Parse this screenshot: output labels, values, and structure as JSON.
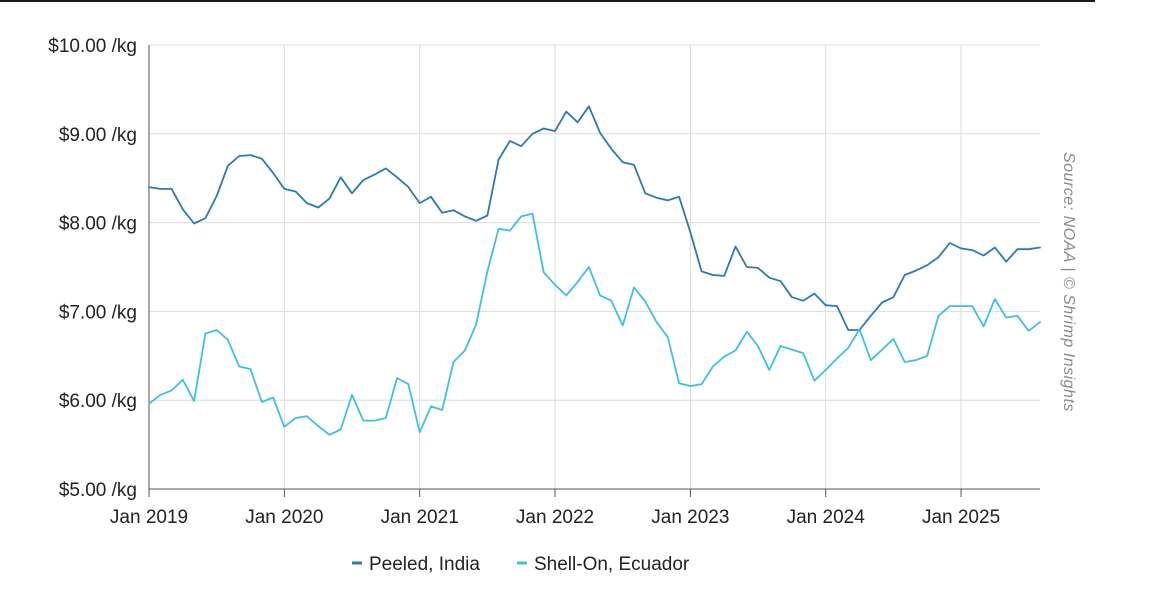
{
  "chart_data": {
    "type": "line",
    "title": "",
    "xlabel": "",
    "ylabel": "",
    "ylim": [
      5,
      10
    ],
    "xlim": [
      2019.0,
      2025.5833
    ],
    "yticks": [
      {
        "value": 5,
        "label": "$5.00 /kg"
      },
      {
        "value": 6,
        "label": "$6.00 /kg"
      },
      {
        "value": 7,
        "label": "$7.00 /kg"
      },
      {
        "value": 8,
        "label": "$8.00 /kg"
      },
      {
        "value": 9,
        "label": "$9.00 /kg"
      },
      {
        "value": 10,
        "label": "$10.00 /kg"
      }
    ],
    "xticks": [
      {
        "value": 2019,
        "label": "Jan 2019"
      },
      {
        "value": 2020,
        "label": "Jan 2020"
      },
      {
        "value": 2021,
        "label": "Jan 2021"
      },
      {
        "value": 2022,
        "label": "Jan 2022"
      },
      {
        "value": 2023,
        "label": "Jan 2023"
      },
      {
        "value": 2024,
        "label": "Jan 2024"
      },
      {
        "value": 2025,
        "label": "Jan 2025"
      }
    ],
    "grid": true,
    "legend_position": "bottom-center",
    "source": "Source: NOAA | © Shrimp Insights",
    "series": [
      {
        "name": "Peeled, India",
        "color": "#2a7ab8",
        "values": [
          8.4,
          8.38,
          8.38,
          8.15,
          7.99,
          8.05,
          8.3,
          8.64,
          8.75,
          8.76,
          8.72,
          8.56,
          8.38,
          8.35,
          8.22,
          8.17,
          8.27,
          8.51,
          8.33,
          8.48,
          8.54,
          8.61,
          8.51,
          8.4,
          8.22,
          8.29,
          8.11,
          8.14,
          8.07,
          8.02,
          8.08,
          8.71,
          8.92,
          8.86,
          9.0,
          9.06,
          9.03,
          9.25,
          9.13,
          9.31,
          9.01,
          8.83,
          8.68,
          8.65,
          8.33,
          8.28,
          8.25,
          8.29,
          7.89,
          7.45,
          7.41,
          7.4,
          7.73,
          7.5,
          7.49,
          7.38,
          7.34,
          7.16,
          7.12,
          7.2,
          7.07,
          7.06,
          6.79,
          6.79,
          6.95,
          7.1,
          7.16,
          7.41,
          7.46,
          7.52,
          7.61,
          7.77,
          7.71,
          7.69,
          7.63,
          7.72,
          7.56,
          7.7,
          7.7,
          7.72
        ]
      },
      {
        "name": "Shell-On, Ecuador",
        "color": "#3ec0e6",
        "values": [
          5.96,
          6.06,
          6.11,
          6.23,
          5.99,
          6.75,
          6.79,
          6.68,
          6.38,
          6.35,
          5.98,
          6.03,
          5.7,
          5.8,
          5.82,
          5.71,
          5.61,
          5.67,
          6.06,
          5.77,
          5.77,
          5.8,
          6.25,
          6.18,
          5.64,
          5.93,
          5.89,
          6.43,
          6.56,
          6.85,
          7.45,
          7.93,
          7.91,
          8.07,
          8.1,
          7.44,
          7.3,
          7.18,
          7.33,
          7.5,
          7.18,
          7.12,
          6.84,
          7.27,
          7.11,
          6.88,
          6.71,
          6.19,
          6.16,
          6.18,
          6.38,
          6.49,
          6.56,
          6.77,
          6.61,
          6.34,
          6.61,
          6.57,
          6.53,
          6.22,
          6.34,
          6.47,
          6.59,
          6.8,
          6.45,
          6.57,
          6.69,
          6.43,
          6.45,
          6.5,
          6.95,
          7.06,
          7.06,
          7.06,
          6.83,
          7.14,
          6.93,
          6.95,
          6.78,
          6.88
        ]
      }
    ]
  }
}
